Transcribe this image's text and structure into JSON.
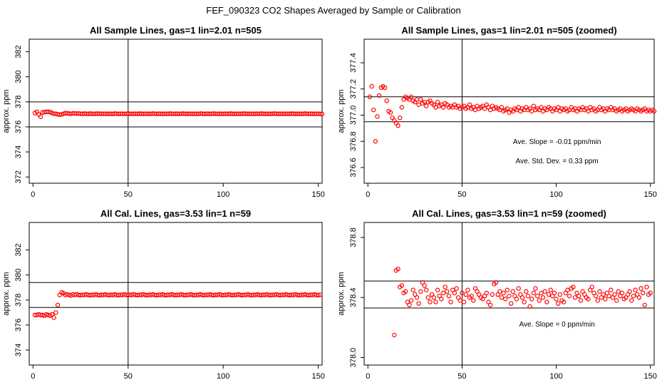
{
  "figure_title": "FEF_090323  CO2 Shapes Averaged by Sample or Calibration",
  "colors": {
    "points": "#ff0000",
    "axes": "#000000",
    "background": "#ffffff"
  },
  "chart_data": [
    {
      "type": "scatter",
      "title": "All Sample Lines, gas=1 lin=2.01 n=505",
      "xlabel": "",
      "ylabel": "approx. ppm",
      "xlim": [
        -2,
        152
      ],
      "ylim": [
        371.5,
        383
      ],
      "xticks": [
        0,
        50,
        100,
        150
      ],
      "yticks": [
        372,
        374,
        376,
        378,
        380,
        382
      ],
      "hlines": [
        378,
        376
      ],
      "vlines": [
        50
      ],
      "annotations": [],
      "x_first": 1,
      "x_step": 1,
      "y": [
        377.1,
        377.2,
        377.0,
        376.8,
        377.15,
        377.18,
        377.2,
        377.2,
        377.18,
        377.1,
        377.05,
        377.05,
        377.0,
        376.98,
        377.0,
        377.05,
        377.1,
        377.08,
        377.06,
        377.05,
        377.08,
        377.07,
        377.06,
        377.07,
        377.05,
        377.04,
        377.06,
        377.05,
        377.04,
        377.06,
        377.05,
        377.04,
        377.05,
        377.06,
        377.05,
        377.04,
        377.05,
        377.05,
        377.04,
        377.05,
        377.05,
        377.04,
        377.06,
        377.05,
        377.04,
        377.05,
        377.05,
        377.04,
        377.05,
        377.06,
        377.05,
        377.04,
        377.05,
        377.05,
        377.04,
        377.06,
        377.05,
        377.04,
        377.05,
        377.05,
        377.04,
        377.05,
        377.06,
        377.05,
        377.04,
        377.05,
        377.05,
        377.04,
        377.05,
        377.05,
        377.04,
        377.06,
        377.05,
        377.04,
        377.05,
        377.05,
        377.04,
        377.05,
        377.06,
        377.05,
        377.04,
        377.05,
        377.05,
        377.04,
        377.05,
        377.05,
        377.04,
        377.06,
        377.05,
        377.04,
        377.05,
        377.05,
        377.04,
        377.05,
        377.06,
        377.05,
        377.04,
        377.05,
        377.05,
        377.04,
        377.05,
        377.05,
        377.04,
        377.06,
        377.05,
        377.04,
        377.05,
        377.05,
        377.04,
        377.05,
        377.06,
        377.05,
        377.04,
        377.05,
        377.05,
        377.04,
        377.05,
        377.05,
        377.04,
        377.06,
        377.05,
        377.04,
        377.05,
        377.05,
        377.04,
        377.05,
        377.06,
        377.05,
        377.04,
        377.05,
        377.05,
        377.04,
        377.05,
        377.05,
        377.04,
        377.06,
        377.05,
        377.04,
        377.05,
        377.05,
        377.04,
        377.05,
        377.06,
        377.05,
        377.04,
        377.05,
        377.05,
        377.04,
        377.05,
        377.05,
        377.04,
        377.03
      ]
    },
    {
      "type": "scatter",
      "title": "All Sample Lines, gas=1 lin=2.01 n=505 (zoomed)",
      "xlabel": "",
      "ylabel": "approx. ppm",
      "xlim": [
        -2,
        152
      ],
      "ylim": [
        376.48,
        377.58
      ],
      "xticks": [
        0,
        50,
        100,
        150
      ],
      "yticks": [
        376.6,
        376.8,
        377.0,
        377.2,
        377.4
      ],
      "hlines": [
        377.14,
        376.95
      ],
      "vlines": [
        50
      ],
      "annotations": [
        "Ave. Slope =  -0.01  ppm/min",
        "Ave. Std. Dev. =  0.33  ppm"
      ],
      "x_first": 1,
      "x_step": 1,
      "y": [
        377.14,
        377.22,
        377.04,
        376.8,
        376.99,
        377.15,
        377.21,
        377.22,
        377.21,
        377.11,
        377.03,
        377.02,
        376.98,
        376.96,
        376.94,
        376.92,
        376.98,
        377.06,
        377.12,
        377.14,
        377.13,
        377.12,
        377.14,
        377.11,
        377.1,
        377.12,
        377.08,
        377.12,
        377.09,
        377.1,
        377.07,
        377.1,
        377.11,
        377.09,
        377.08,
        377.06,
        377.1,
        377.07,
        377.08,
        377.06,
        377.09,
        377.08,
        377.06,
        377.07,
        377.06,
        377.08,
        377.06,
        377.07,
        377.05,
        377.06,
        377.07,
        377.05,
        377.06,
        377.08,
        377.05,
        377.06,
        377.04,
        377.07,
        377.05,
        377.06,
        377.07,
        377.05,
        377.08,
        377.06,
        377.04,
        377.07,
        377.05,
        377.06,
        377.05,
        377.04,
        377.06,
        377.03,
        377.04,
        377.05,
        377.02,
        377.04,
        377.03,
        377.05,
        377.04,
        377.06,
        377.03,
        377.05,
        377.04,
        377.06,
        377.04,
        377.05,
        377.03,
        377.07,
        377.04,
        377.05,
        377.04,
        377.06,
        377.03,
        377.05,
        377.04,
        377.06,
        377.05,
        377.03,
        377.05,
        377.04,
        377.06,
        377.03,
        377.05,
        377.04,
        377.05,
        377.03,
        377.04,
        377.06,
        377.04,
        377.05,
        377.03,
        377.05,
        377.04,
        377.06,
        377.04,
        377.05,
        377.03,
        377.06,
        377.04,
        377.05,
        377.03,
        377.04,
        377.06,
        377.04,
        377.05,
        377.03,
        377.05,
        377.04,
        377.06,
        377.04,
        377.05,
        377.03,
        377.04,
        377.05,
        377.03,
        377.04,
        377.05,
        377.03,
        377.04,
        377.05,
        377.04,
        377.03,
        377.05,
        377.04,
        377.03,
        377.04,
        377.05,
        377.03,
        377.04,
        377.03,
        377.04,
        377.03
      ]
    },
    {
      "type": "scatter",
      "title": "All Cal. Lines, gas=3.53 lin=1 n=59",
      "xlabel": "",
      "ylabel": "approx. ppm",
      "xlim": [
        -2,
        152
      ],
      "ylim": [
        372.8,
        384.2
      ],
      "xticks": [
        0,
        50,
        100,
        150
      ],
      "yticks": [
        374,
        376,
        378,
        380,
        382
      ],
      "hlines": [
        379.4,
        377.4
      ],
      "vlines": [
        50
      ],
      "annotations": [],
      "x_first": 1,
      "x_step": 1,
      "y": [
        376.8,
        376.8,
        376.85,
        376.8,
        376.8,
        376.75,
        376.85,
        376.8,
        376.75,
        376.85,
        376.6,
        377.0,
        377.6,
        378.4,
        378.6,
        378.55,
        378.4,
        378.45,
        378.4,
        378.35,
        378.45,
        378.4,
        378.45,
        378.4,
        378.38,
        378.42,
        378.4,
        378.45,
        378.4,
        378.38,
        378.42,
        378.4,
        378.45,
        378.4,
        378.38,
        378.42,
        378.4,
        378.45,
        378.4,
        378.38,
        378.42,
        378.4,
        378.45,
        378.4,
        378.38,
        378.42,
        378.4,
        378.45,
        378.4,
        378.38,
        378.42,
        378.4,
        378.45,
        378.4,
        378.38,
        378.42,
        378.4,
        378.45,
        378.4,
        378.38,
        378.42,
        378.4,
        378.45,
        378.4,
        378.38,
        378.42,
        378.4,
        378.45,
        378.4,
        378.38,
        378.42,
        378.4,
        378.45,
        378.4,
        378.38,
        378.42,
        378.4,
        378.45,
        378.4,
        378.38,
        378.42,
        378.4,
        378.45,
        378.4,
        378.38,
        378.42,
        378.4,
        378.45,
        378.4,
        378.38,
        378.42,
        378.4,
        378.45,
        378.4,
        378.38,
        378.42,
        378.4,
        378.45,
        378.4,
        378.38,
        378.42,
        378.4,
        378.45,
        378.4,
        378.38,
        378.42,
        378.4,
        378.45,
        378.4,
        378.38,
        378.42,
        378.4,
        378.45,
        378.4,
        378.38,
        378.42,
        378.4,
        378.45,
        378.4,
        378.38,
        378.42,
        378.4,
        378.45,
        378.4,
        378.38,
        378.42,
        378.4,
        378.45,
        378.4,
        378.38,
        378.42,
        378.4,
        378.45,
        378.4,
        378.38,
        378.42,
        378.4,
        378.45,
        378.4,
        378.38,
        378.42,
        378.4,
        378.45,
        378.4,
        378.38,
        378.42,
        378.4,
        378.45,
        378.4,
        378.38,
        378.42
      ]
    },
    {
      "type": "scatter",
      "title": "All Cal. Lines, gas=3.53 lin=1 n=59 (zoomed)",
      "xlabel": "",
      "ylabel": "approx. ppm",
      "xlim": [
        -2,
        152
      ],
      "ylim": [
        377.95,
        378.9
      ],
      "xticks": [
        0,
        50,
        100,
        150
      ],
      "yticks": [
        378.0,
        378.4,
        378.8
      ],
      "hlines": [
        378.51,
        378.33
      ],
      "vlines": [
        50
      ],
      "annotations": [
        "Ave. Slope =  0  ppm/min"
      ],
      "x_first": 14,
      "x_step": 1,
      "y": [
        378.15,
        378.58,
        378.59,
        378.47,
        378.48,
        378.43,
        378.44,
        378.37,
        378.35,
        378.38,
        378.45,
        378.42,
        378.4,
        378.36,
        378.44,
        378.5,
        378.48,
        378.45,
        378.4,
        378.37,
        378.42,
        378.4,
        378.37,
        378.45,
        378.41,
        378.39,
        378.43,
        378.47,
        378.44,
        378.41,
        378.37,
        378.45,
        378.43,
        378.46,
        378.4,
        378.38,
        378.43,
        378.37,
        378.42,
        378.45,
        378.4,
        378.41,
        378.38,
        378.46,
        378.44,
        378.42,
        378.4,
        378.39,
        378.41,
        378.43,
        378.37,
        378.35,
        378.42,
        378.49,
        378.5,
        378.42,
        378.44,
        378.4,
        378.43,
        378.39,
        378.45,
        378.41,
        378.36,
        378.44,
        378.41,
        378.39,
        378.46,
        378.42,
        378.4,
        378.37,
        378.44,
        378.41,
        378.34,
        378.39,
        378.43,
        378.46,
        378.41,
        378.38,
        378.43,
        378.4,
        378.44,
        378.37,
        378.42,
        378.45,
        378.41,
        378.43,
        378.39,
        378.36,
        378.42,
        378.38,
        378.37,
        378.43,
        378.45,
        378.41,
        378.46,
        378.47,
        378.4,
        378.43,
        378.41,
        378.38,
        378.44,
        378.42,
        378.4,
        378.39,
        378.45,
        378.47,
        378.43,
        378.41,
        378.38,
        378.44,
        378.4,
        378.42,
        378.39,
        378.43,
        378.41,
        378.45,
        378.4,
        378.42,
        378.38,
        378.44,
        378.41,
        378.43,
        378.39,
        378.4,
        378.42,
        378.44,
        378.38,
        378.41,
        378.45,
        378.42,
        378.4,
        378.46,
        378.43,
        378.35,
        378.47,
        378.42,
        378.43
      ]
    }
  ]
}
